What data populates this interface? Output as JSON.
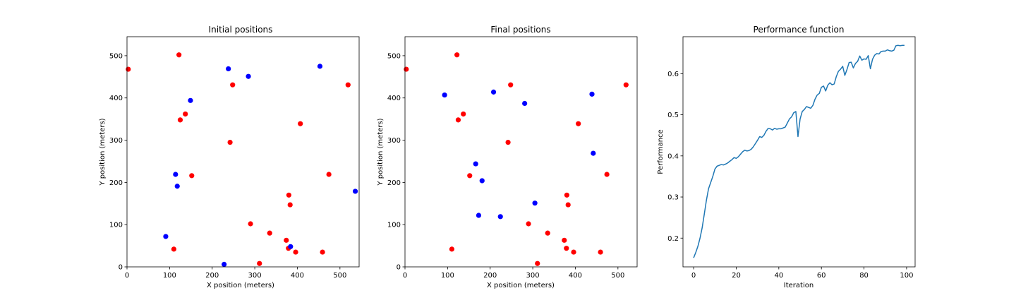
{
  "chart_data": [
    {
      "type": "scatter",
      "title": "Initial positions",
      "xlabel": "X position (meters)",
      "ylabel": "Y position (meters)",
      "xlim": [
        0,
        545
      ],
      "ylim": [
        0,
        545
      ],
      "xticks": [
        0,
        100,
        200,
        300,
        400,
        500
      ],
      "yticks": [
        0,
        100,
        200,
        300,
        400,
        500
      ],
      "series": [
        {
          "color": "#ff0000",
          "points": [
            [
              3,
              468
            ],
            [
              122,
              502
            ],
            [
              248,
              431
            ],
            [
              519,
              431
            ],
            [
              137,
              362
            ],
            [
              125,
              348
            ],
            [
              407,
              339
            ],
            [
              242,
              295
            ],
            [
              474,
              219
            ],
            [
              152,
              216
            ],
            [
              380,
              170
            ],
            [
              383,
              147
            ],
            [
              290,
              102
            ],
            [
              335,
              80
            ],
            [
              374,
              63
            ],
            [
              379,
              44
            ],
            [
              396,
              35
            ],
            [
              459,
              35
            ],
            [
              110,
              42
            ],
            [
              311,
              8
            ]
          ]
        },
        {
          "color": "#0000ff",
          "points": [
            [
              238,
              469
            ],
            [
              285,
              451
            ],
            [
              453,
              475
            ],
            [
              149,
              394
            ],
            [
              114,
              219
            ],
            [
              118,
              191
            ],
            [
              536,
              179
            ],
            [
              91,
              72
            ],
            [
              384,
              48
            ],
            [
              228,
              6
            ]
          ]
        }
      ]
    },
    {
      "type": "scatter",
      "title": "Final positions",
      "xlabel": "X position (meters)",
      "ylabel": "Y position (meters)",
      "xlim": [
        0,
        545
      ],
      "ylim": [
        0,
        545
      ],
      "xticks": [
        0,
        100,
        200,
        300,
        400,
        500
      ],
      "yticks": [
        0,
        100,
        200,
        300,
        400,
        500
      ],
      "series": [
        {
          "color": "#ff0000",
          "points": [
            [
              3,
              468
            ],
            [
              122,
              502
            ],
            [
              248,
              431
            ],
            [
              519,
              431
            ],
            [
              137,
              362
            ],
            [
              125,
              348
            ],
            [
              407,
              339
            ],
            [
              242,
              295
            ],
            [
              474,
              219
            ],
            [
              152,
              216
            ],
            [
              380,
              170
            ],
            [
              383,
              147
            ],
            [
              290,
              102
            ],
            [
              335,
              80
            ],
            [
              374,
              63
            ],
            [
              379,
              44
            ],
            [
              396,
              35
            ],
            [
              459,
              35
            ],
            [
              110,
              42
            ],
            [
              311,
              8
            ]
          ]
        },
        {
          "color": "#0000ff",
          "points": [
            [
              93,
              407
            ],
            [
              208,
              414
            ],
            [
              281,
              387
            ],
            [
              439,
              409
            ],
            [
              442,
              269
            ],
            [
              166,
              244
            ],
            [
              181,
              204
            ],
            [
              173,
              122
            ],
            [
              224,
              119
            ],
            [
              305,
              151
            ]
          ]
        }
      ]
    },
    {
      "type": "line",
      "title": "Performance function",
      "xlabel": "Iteration",
      "ylabel": "Performance",
      "xlim": [
        -5,
        104
      ],
      "ylim": [
        0.13,
        0.69
      ],
      "xticks": [
        0,
        20,
        40,
        60,
        80,
        100
      ],
      "yticks": [
        0.2,
        0.3,
        0.4,
        0.5,
        0.6
      ],
      "series": [
        {
          "color": "#1f77b4",
          "x": [
            0,
            1,
            2,
            3,
            4,
            5,
            6,
            7,
            8,
            9,
            10,
            11,
            12,
            13,
            14,
            15,
            16,
            17,
            18,
            19,
            20,
            21,
            22,
            23,
            24,
            25,
            26,
            27,
            28,
            29,
            30,
            31,
            32,
            33,
            34,
            35,
            36,
            37,
            38,
            39,
            40,
            41,
            42,
            43,
            44,
            45,
            46,
            47,
            48,
            49,
            50,
            51,
            52,
            53,
            54,
            55,
            56,
            57,
            58,
            59,
            60,
            61,
            62,
            63,
            64,
            65,
            66,
            67,
            68,
            69,
            70,
            71,
            72,
            73,
            74,
            75,
            76,
            77,
            78,
            79,
            80,
            81,
            82,
            83,
            84,
            85,
            86,
            87,
            88,
            89,
            90,
            91,
            92,
            93,
            94,
            95,
            96,
            97,
            98,
            99
          ],
          "y": [
            0.152,
            0.165,
            0.18,
            0.2,
            0.225,
            0.258,
            0.292,
            0.32,
            0.335,
            0.35,
            0.368,
            0.375,
            0.377,
            0.379,
            0.378,
            0.38,
            0.383,
            0.387,
            0.391,
            0.396,
            0.394,
            0.398,
            0.404,
            0.41,
            0.414,
            0.412,
            0.413,
            0.416,
            0.422,
            0.43,
            0.438,
            0.447,
            0.445,
            0.45,
            0.46,
            0.467,
            0.466,
            0.463,
            0.467,
            0.465,
            0.466,
            0.466,
            0.468,
            0.47,
            0.48,
            0.49,
            0.495,
            0.505,
            0.508,
            0.447,
            0.49,
            0.508,
            0.513,
            0.52,
            0.518,
            0.516,
            0.523,
            0.538,
            0.548,
            0.552,
            0.567,
            0.57,
            0.558,
            0.572,
            0.578,
            0.573,
            0.575,
            0.593,
            0.606,
            0.611,
            0.618,
            0.596,
            0.61,
            0.627,
            0.628,
            0.614,
            0.625,
            0.63,
            0.643,
            0.633,
            0.636,
            0.635,
            0.644,
            0.612,
            0.635,
            0.645,
            0.649,
            0.648,
            0.654,
            0.655,
            0.655,
            0.658,
            0.656,
            0.655,
            0.657,
            0.668,
            0.669,
            0.668,
            0.669,
            0.669
          ]
        }
      ]
    }
  ]
}
